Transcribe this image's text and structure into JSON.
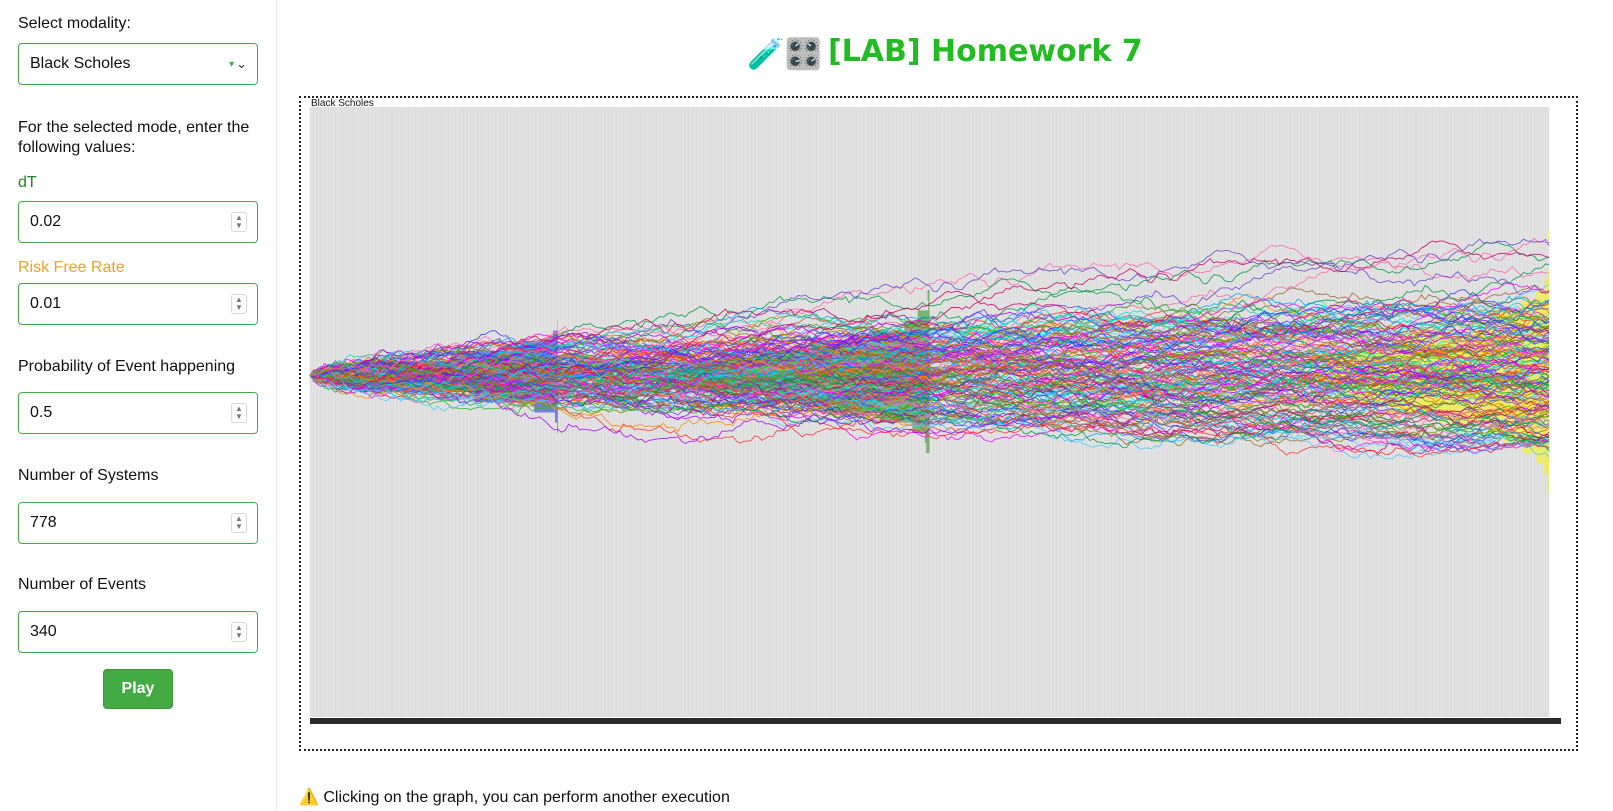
{
  "sidebar": {
    "modality_label": "Select modality:",
    "modality_value": "Black Scholes",
    "instructions": "For the selected mode, enter the following values:",
    "fields": [
      {
        "label": "dT",
        "value": "0.02"
      },
      {
        "label": "Risk Free Rate",
        "value": "0.01"
      },
      {
        "label": "Probability of Event happening",
        "value": "0.5"
      },
      {
        "label": "Number of Systems",
        "value": "778"
      },
      {
        "label": "Number of Events",
        "value": "340"
      }
    ],
    "play_label": "Play"
  },
  "main": {
    "title": "[LAB] Homework 7",
    "title_icons": "🧪🎛️",
    "warning_icon": "⚠️",
    "warning_text": "Clicking on the graph, you can perform another execution"
  },
  "chart_data": {
    "type": "line",
    "title": "Black Scholes",
    "series_count": 778,
    "events": 340,
    "histograms": [
      {
        "color": "#6a6af0",
        "at_event": 68
      },
      {
        "color": "#6aaa5a",
        "at_event": 170
      },
      {
        "color": "#eded55",
        "at_event": 340
      }
    ],
    "background": "#e2e2e2"
  }
}
